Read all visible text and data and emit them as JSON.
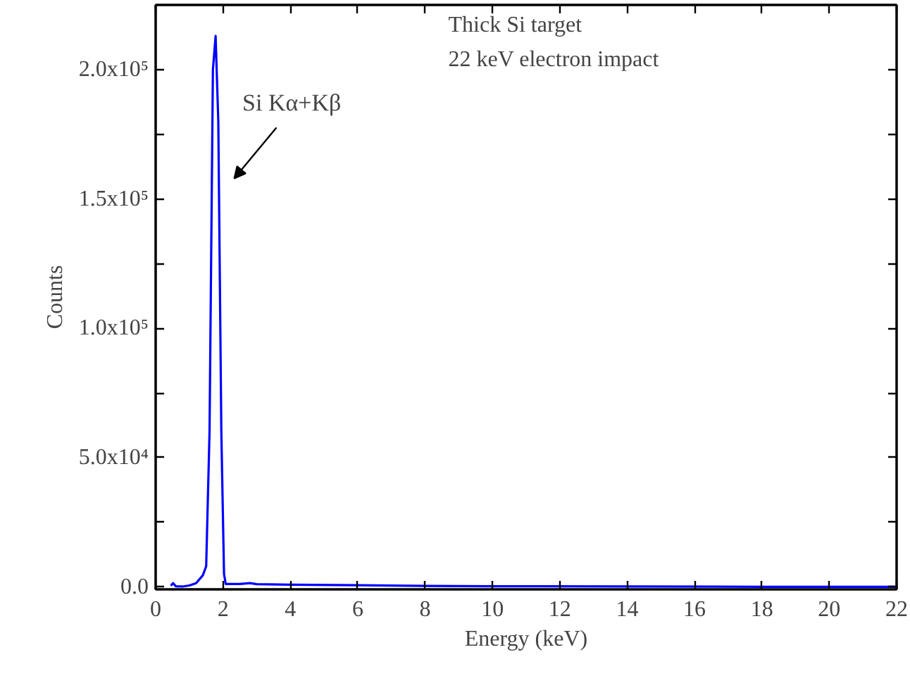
{
  "chart_data": {
    "type": "line",
    "xlabel": "Energy (keV)",
    "ylabel": "Counts",
    "x": [
      0.45,
      0.52,
      0.6,
      0.8,
      1.0,
      1.2,
      1.4,
      1.5,
      1.6,
      1.7,
      1.78,
      1.86,
      1.95,
      2.03,
      2.08,
      2.5,
      2.8,
      3.0,
      4.0,
      6.0,
      8.0,
      10.0,
      14.0,
      18.0,
      22.0
    ],
    "series": [
      {
        "color": "#0000ff",
        "values": [
          500,
          1500,
          300,
          200,
          600,
          1500,
          4500,
          8000,
          60000,
          200000,
          213000,
          180000,
          60000,
          5000,
          1200,
          1200,
          1500,
          1100,
          900,
          700,
          400,
          300,
          200,
          100,
          100
        ]
      }
    ],
    "xlim": [
      0,
      22
    ],
    "xticks": [
      0,
      2,
      4,
      6,
      8,
      10,
      12,
      14,
      16,
      18,
      20,
      22
    ],
    "ylim": [
      -900,
      225000
    ],
    "yticks": [
      {
        "value": 0,
        "label": "0.0"
      },
      {
        "value": 25000,
        "label": null
      },
      {
        "value": 50000,
        "label": "5.0x10⁴"
      },
      {
        "value": 75000,
        "label": null
      },
      {
        "value": 100000,
        "label": "1.0x10⁵"
      },
      {
        "value": 125000,
        "label": null
      },
      {
        "value": 150000,
        "label": "1.5x10⁵"
      },
      {
        "value": 175000,
        "label": null
      },
      {
        "value": 200000,
        "label": "2.0x10⁵"
      }
    ],
    "annotations": [
      "Si Kα+Kβ",
      "Thick Si target",
      "22 keV electron impact"
    ],
    "grid": false,
    "marker": "none",
    "line_style": "solid"
  }
}
